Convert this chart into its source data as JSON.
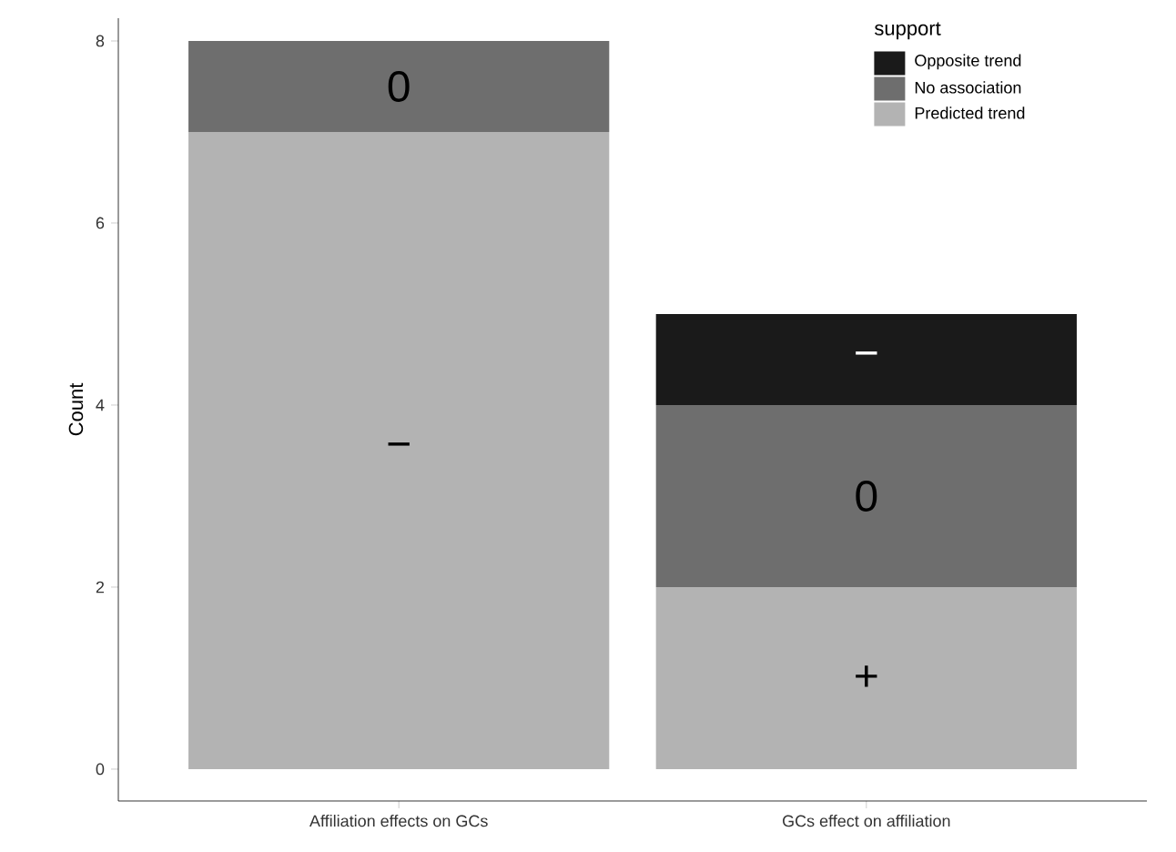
{
  "chart_data": {
    "type": "bar",
    "stacked": true,
    "ylabel": "Count",
    "legend_title": "support",
    "legend": "top right",
    "categories": [
      "Affiliation effects on GCs",
      "GCs effect on affiliation"
    ],
    "series": [
      {
        "name": "Predicted trend",
        "color": "#b3b3b3",
        "values": [
          7,
          2
        ]
      },
      {
        "name": "No association",
        "color": "#6e6e6e",
        "values": [
          1,
          2
        ]
      },
      {
        "name": "Opposite trend",
        "color": "#1a1a1a",
        "values": [
          0,
          1
        ]
      }
    ],
    "annotations": [
      "−",
      "0",
      "+",
      "0",
      "−"
    ],
    "ylim": [
      -0.35,
      8.25
    ],
    "yticks": [
      0,
      2,
      4,
      6,
      8
    ]
  }
}
